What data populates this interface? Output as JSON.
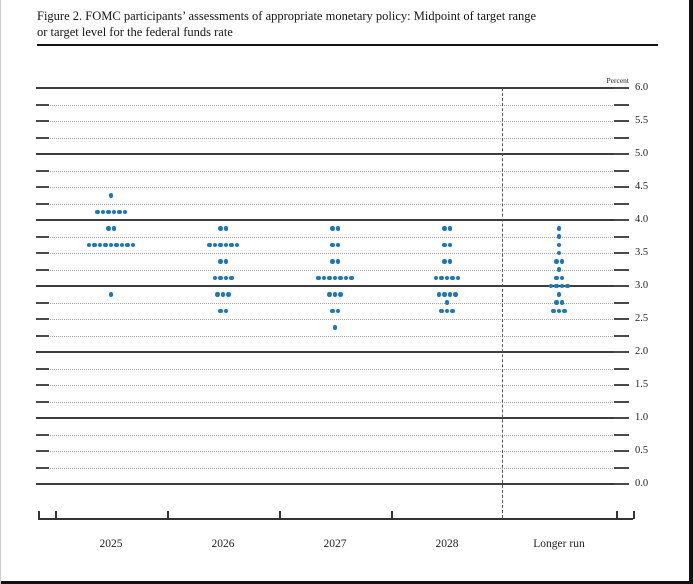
{
  "title": {
    "line1": "Figure 2. FOMC participants’ assessments of appropriate monetary policy: Midpoint of target range",
    "line2": "or target level for the federal funds rate"
  },
  "chart_data": {
    "type": "scatter",
    "title": "FOMC dot plot: Midpoint of target range or target level for the federal funds rate",
    "unit_label": "Percent",
    "ylabel": "Percent",
    "ylim": [
      0.0,
      6.0
    ],
    "tick_step": 0.25,
    "label_step": 0.5,
    "solid_gridlines_at_integers": true,
    "grid": true,
    "legend_position": "none",
    "y_axis_labels": [
      "6.0",
      "5.5",
      "5.0",
      "4.5",
      "4.0",
      "3.5",
      "3.0",
      "2.5",
      "2.0",
      "1.5",
      "1.0",
      "0.5",
      "0.0"
    ],
    "dot_color": "#1f77b4",
    "categories": [
      "2025",
      "2026",
      "2027",
      "2028",
      "Longer run"
    ],
    "separator_after_category": "2028",
    "series": [
      {
        "name": "2025",
        "dots": [
          {
            "rate": 4.375,
            "count": 1
          },
          {
            "rate": 4.125,
            "count": 6
          },
          {
            "rate": 3.875,
            "count": 2
          },
          {
            "rate": 3.625,
            "count": 9
          },
          {
            "rate": 2.875,
            "count": 1
          }
        ]
      },
      {
        "name": "2026",
        "dots": [
          {
            "rate": 3.875,
            "count": 2
          },
          {
            "rate": 3.625,
            "count": 6
          },
          {
            "rate": 3.375,
            "count": 2
          },
          {
            "rate": 3.125,
            "count": 4
          },
          {
            "rate": 2.875,
            "count": 3
          },
          {
            "rate": 2.625,
            "count": 2
          }
        ]
      },
      {
        "name": "2027",
        "dots": [
          {
            "rate": 3.875,
            "count": 2
          },
          {
            "rate": 3.625,
            "count": 2
          },
          {
            "rate": 3.375,
            "count": 2
          },
          {
            "rate": 3.125,
            "count": 7
          },
          {
            "rate": 2.875,
            "count": 3
          },
          {
            "rate": 2.625,
            "count": 2
          },
          {
            "rate": 2.375,
            "count": 1
          }
        ]
      },
      {
        "name": "2028",
        "dots": [
          {
            "rate": 3.875,
            "count": 2
          },
          {
            "rate": 3.625,
            "count": 2
          },
          {
            "rate": 3.375,
            "count": 2
          },
          {
            "rate": 3.125,
            "count": 5
          },
          {
            "rate": 2.875,
            "count": 4
          },
          {
            "rate": 2.75,
            "count": 1
          },
          {
            "rate": 2.625,
            "count": 3
          }
        ]
      },
      {
        "name": "Longer run",
        "dots": [
          {
            "rate": 3.875,
            "count": 1
          },
          {
            "rate": 3.75,
            "count": 1
          },
          {
            "rate": 3.625,
            "count": 1
          },
          {
            "rate": 3.5,
            "count": 1
          },
          {
            "rate": 3.375,
            "count": 2
          },
          {
            "rate": 3.25,
            "count": 1
          },
          {
            "rate": 3.125,
            "count": 2
          },
          {
            "rate": 3.0,
            "count": 4
          },
          {
            "rate": 2.875,
            "count": 1
          },
          {
            "rate": 2.75,
            "count": 2
          },
          {
            "rate": 2.625,
            "count": 3
          }
        ]
      }
    ]
  }
}
